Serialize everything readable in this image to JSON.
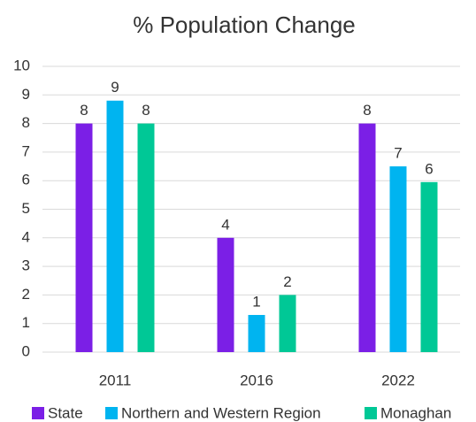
{
  "chart_data": {
    "type": "bar",
    "title": "% Population Change",
    "categories": [
      "2011",
      "2016",
      "2022"
    ],
    "series": [
      {
        "name": "State",
        "color": "#7b1fe6",
        "values": [
          8.0,
          4.0,
          8.0
        ],
        "value_labels": [
          "8",
          "4",
          "8"
        ]
      },
      {
        "name": "Northern and Western Region",
        "color": "#00b4f0",
        "values": [
          8.8,
          1.3,
          6.5
        ],
        "value_labels": [
          "9",
          "1",
          "7"
        ]
      },
      {
        "name": "Monaghan",
        "color": "#00c896",
        "values": [
          8.0,
          2.0,
          5.95
        ],
        "value_labels": [
          "8",
          "2",
          "6"
        ]
      }
    ],
    "ylim": [
      0,
      10
    ],
    "yticks": [
      0,
      1,
      2,
      3,
      4,
      5,
      6,
      7,
      8,
      9,
      10
    ],
    "grid": true,
    "legend": "bottom"
  }
}
